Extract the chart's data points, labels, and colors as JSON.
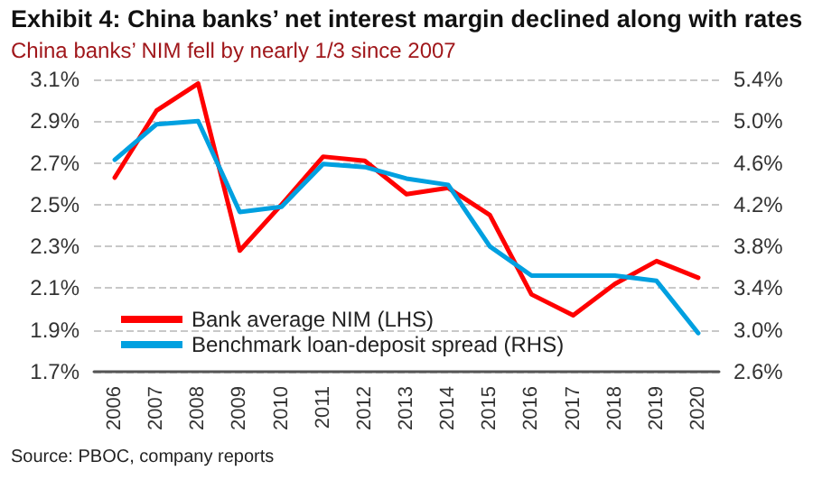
{
  "chart_data": {
    "type": "line",
    "title": "Exhibit 4: China banks’ net interest margin declined along with rates",
    "subtitle": "China banks’ NIM fell by nearly 1/3 since 2007",
    "categories": [
      "2006",
      "2007",
      "2008",
      "2009",
      "2010",
      "2011",
      "2012",
      "2013",
      "2014",
      "2015",
      "2016",
      "2017",
      "2018",
      "2019",
      "2020"
    ],
    "series": [
      {
        "name": "Bank average NIM (LHS)",
        "color": "#ff0000",
        "values": [
          2.63,
          2.95,
          3.08,
          2.28,
          2.5,
          2.73,
          2.71,
          2.55,
          2.58,
          2.45,
          2.07,
          1.97,
          2.12,
          2.23,
          2.15
        ]
      },
      {
        "name": "Benchmark loan-deposit spread (RHS)",
        "color": "#00a0e0",
        "axis": "y2",
        "values": [
          4.63,
          4.97,
          5.0,
          4.13,
          4.18,
          4.59,
          4.56,
          4.45,
          4.39,
          3.8,
          3.52,
          3.52,
          3.52,
          3.47,
          2.97
        ]
      }
    ],
    "ylim": [
      1.7,
      3.1
    ],
    "yticks": [
      {
        "value": 1.7,
        "label": "1.7%"
      },
      {
        "value": 1.9,
        "label": "1.9%"
      },
      {
        "value": 2.1,
        "label": "2.1%"
      },
      {
        "value": 2.3,
        "label": "2.3%"
      },
      {
        "value": 2.5,
        "label": "2.5%"
      },
      {
        "value": 2.7,
        "label": "2.7%"
      },
      {
        "value": 2.9,
        "label": "2.9%"
      },
      {
        "value": 3.1,
        "label": "3.1%"
      }
    ],
    "y2lim": [
      2.6,
      5.4
    ],
    "y2ticks": [
      {
        "value": 2.6,
        "label": "2.6%"
      },
      {
        "value": 3.0,
        "label": "3.0%"
      },
      {
        "value": 3.4,
        "label": "3.4%"
      },
      {
        "value": 3.8,
        "label": "3.8%"
      },
      {
        "value": 4.2,
        "label": "4.2%"
      },
      {
        "value": 4.6,
        "label": "4.6%"
      },
      {
        "value": 5.0,
        "label": "5.0%"
      },
      {
        "value": 5.4,
        "label": "5.4%"
      }
    ],
    "grid": "y",
    "legend": "bottom left",
    "marker": "none",
    "line_style": "solid",
    "annotations": [
      "Source: PBOC, company reports"
    ]
  }
}
